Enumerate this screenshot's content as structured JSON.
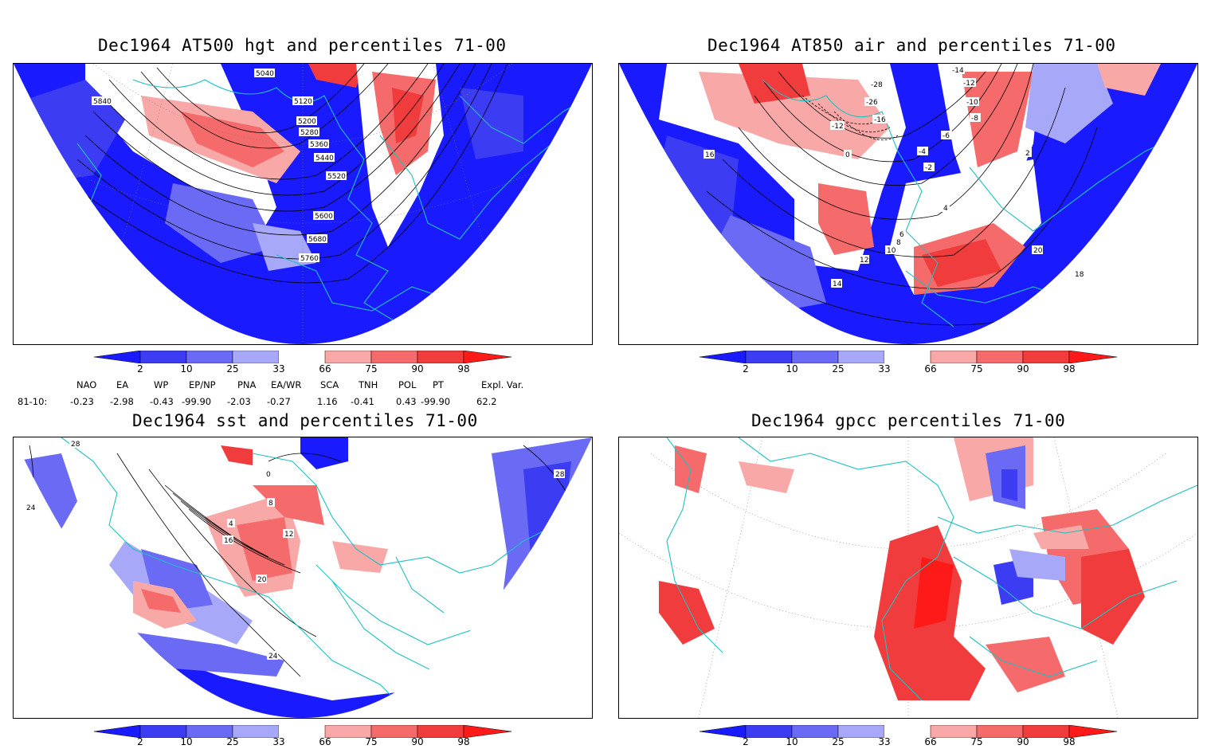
{
  "panels": [
    {
      "id": "p1",
      "title": "Dec1964 AT500 hgt and percentiles 71-00",
      "contour_labels": [
        "5040",
        "5120",
        "5200",
        "5280",
        "5360",
        "5440",
        "5520",
        "5600",
        "5680",
        "5760",
        "5840"
      ]
    },
    {
      "id": "p2",
      "title": "Dec1964 AT850 air and percentiles 71-00",
      "contour_labels": [
        "-14",
        "-12",
        "-28",
        "-26",
        "-16",
        "-12",
        "-10",
        "-8",
        "-6",
        "-4",
        "-2",
        "0",
        "2",
        "4",
        "6",
        "8",
        "10",
        "12",
        "14",
        "16",
        "18",
        "20"
      ]
    },
    {
      "id": "p3",
      "title": "Dec1964 sst and percentiles 71-00",
      "contour_labels": [
        "28",
        "24",
        "0",
        "4",
        "8",
        "12",
        "16",
        "20",
        "24",
        "28"
      ]
    },
    {
      "id": "p4",
      "title": "Dec1964 gpcc percentiles 71-00",
      "contour_labels": []
    }
  ],
  "colorbar": {
    "labels": [
      "2",
      "10",
      "25",
      "33",
      "66",
      "75",
      "90",
      "98"
    ],
    "colors": {
      "below2": "#1a1aff",
      "b2_10": "#3c3cf2",
      "b10_25": "#6a6af5",
      "b25_33": "#a8a8f8",
      "neutral": "#ffffff",
      "a66_75": "#f9a8a8",
      "a75_90": "#f56a6a",
      "a90_98": "#f03c3c",
      "above98": "#ff1a1a"
    }
  },
  "indices": {
    "headers": [
      "NAO",
      "EA",
      "WP",
      "EP/NP",
      "PNA",
      "EA/WR",
      "SCA",
      "TNH",
      "POL",
      "PT",
      "Expl. Var."
    ],
    "row_label": "81-10:",
    "values": [
      "-0.23",
      "-2.98",
      "-0.43",
      "-99.90",
      "-2.03",
      "-0.27",
      "1.16",
      "-0.41",
      "0.43",
      "-99.90",
      "62.2"
    ]
  },
  "colors": {
    "coast": "#20c0c0",
    "contour": "#000000",
    "frame": "#000000"
  }
}
